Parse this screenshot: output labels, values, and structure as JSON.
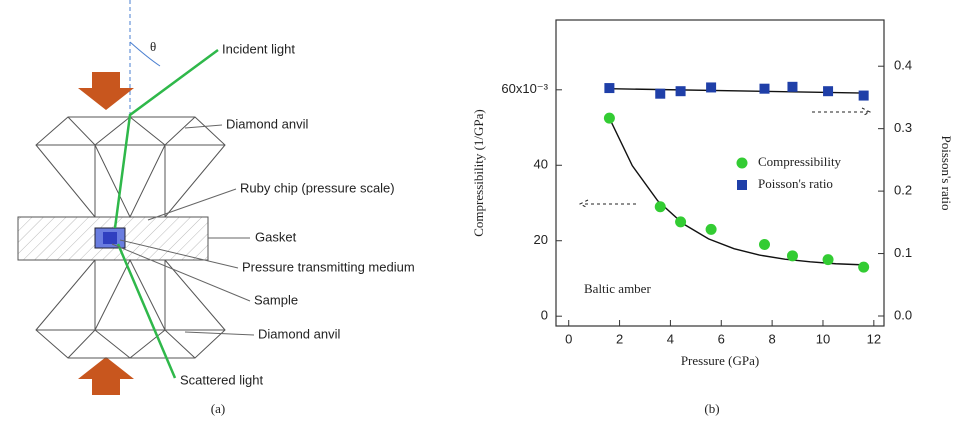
{
  "panel_a": {
    "theta": "θ",
    "incident_light": "Incident light",
    "diamond_anvil_top": "Diamond anvil",
    "ruby_chip": "Ruby chip (pressure scale)",
    "gasket": "Gasket",
    "medium": "Pressure transmitting medium",
    "sample": "Sample",
    "diamond_anvil_bottom": "Diamond anvil",
    "scattered_light": "Scattered light",
    "caption": "(a)"
  },
  "panel_b_caption": "(b)",
  "chart_data": {
    "type": "scatter",
    "x_label": "Pressure (GPa)",
    "y_label": "Compressibility (1/GPa)",
    "y2_label": "Poisson's ratio",
    "annotation": "Baltic amber",
    "xlim": [
      -0.5,
      12.4
    ],
    "xticks": [
      0,
      2,
      4,
      6,
      8,
      10,
      12
    ],
    "ylim": [
      -2.6,
      78.5
    ],
    "yticks": [
      0,
      20,
      40,
      {
        "value": 60,
        "label": "60x10⁻³"
      }
    ],
    "y2lim": [
      -0.016,
      0.474
    ],
    "y2ticks": [
      {
        "value": 0,
        "label": "0.0"
      },
      0.1,
      0.2,
      0.3,
      0.4
    ],
    "series": [
      {
        "name": "Compressibility",
        "color": "#33cc33",
        "marker": "circle",
        "x": [
          1.6,
          3.6,
          4.4,
          5.6,
          7.7,
          8.8,
          10.2,
          11.6
        ],
        "values": [
          52.5,
          29,
          25,
          23,
          19,
          16,
          15,
          13
        ],
        "fit_x": [
          1.6,
          2.5,
          3.5,
          4.5,
          5.5,
          6.5,
          7.5,
          8.5,
          9.5,
          10.5,
          11.6
        ],
        "fit_values": [
          52.5,
          39.9,
          30.6,
          24.5,
          20.5,
          17.9,
          16.2,
          15.1,
          14.4,
          13.9,
          13.6
        ]
      },
      {
        "name": "Poisson's ratio",
        "color": "#1f3fa8",
        "marker": "square",
        "axis": "y2",
        "x": [
          1.6,
          3.6,
          4.4,
          5.6,
          7.7,
          8.8,
          10.2,
          11.6
        ],
        "values": [
          0.365,
          0.356,
          0.36,
          0.366,
          0.364,
          0.367,
          0.36,
          0.353
        ],
        "fit_x": [
          1.6,
          11.6
        ],
        "fit_values": [
          0.364,
          0.357
        ]
      }
    ]
  }
}
